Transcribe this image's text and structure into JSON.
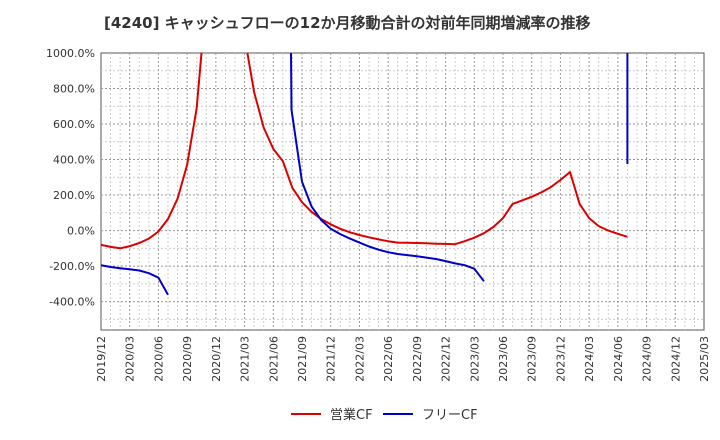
{
  "chart_data": {
    "type": "line",
    "title": "[4240]  キャッシュフローの12か月移動合計の対前年同期増減率の推移",
    "xlabel": "",
    "ylabel": "",
    "ylim": [
      -560,
      1000
    ],
    "y_ticks": [
      1000,
      800,
      600,
      400,
      200,
      0,
      -200,
      -400
    ],
    "y_tick_labels": [
      "1000.0%",
      "800.0%",
      "600.0%",
      "400.0%",
      "200.0%",
      "0.0%",
      "-200.0%",
      "-400.0%"
    ],
    "x_tick_labels": [
      "2019/12",
      "2020/03",
      "2020/06",
      "2020/09",
      "2020/12",
      "2021/03",
      "2021/06",
      "2021/09",
      "2021/12",
      "2022/03",
      "2022/06",
      "2022/09",
      "2022/12",
      "2023/03",
      "2023/06",
      "2023/09",
      "2023/12",
      "2024/03",
      "2024/06",
      "2024/09",
      "2024/12",
      "2025/03"
    ],
    "grid": true,
    "legend_position": "bottom-center",
    "series": [
      {
        "name": "営業CF",
        "color": "#dd0000",
        "points": [
          [
            0,
            -80
          ],
          [
            1,
            -92
          ],
          [
            2,
            -100
          ],
          [
            3,
            -88
          ],
          [
            4,
            -70
          ],
          [
            5,
            -45
          ],
          [
            6,
            -5
          ],
          [
            7,
            65
          ],
          [
            8,
            180
          ],
          [
            9,
            370
          ],
          [
            10,
            690
          ],
          [
            10.5,
            1000
          ],
          null,
          [
            15.3,
            1000
          ],
          [
            16,
            780
          ],
          [
            17,
            580
          ],
          [
            18,
            460
          ],
          [
            19,
            390
          ],
          [
            20,
            240
          ],
          [
            21,
            160
          ],
          [
            22,
            105
          ],
          [
            23,
            65
          ],
          [
            24,
            35
          ],
          [
            25,
            10
          ],
          [
            26,
            -10
          ],
          [
            27,
            -25
          ],
          [
            28,
            -38
          ],
          [
            29,
            -50
          ],
          [
            30,
            -60
          ],
          [
            31,
            -68
          ],
          [
            32,
            -69
          ],
          [
            33,
            -70
          ],
          [
            34,
            -72
          ],
          [
            35,
            -74
          ],
          [
            36,
            -75
          ],
          [
            37,
            -77
          ],
          [
            38,
            -60
          ],
          [
            39,
            -40
          ],
          [
            40,
            -15
          ],
          [
            41,
            20
          ],
          [
            42,
            70
          ],
          [
            43,
            150
          ],
          [
            44,
            170
          ],
          [
            45,
            190
          ],
          [
            46,
            215
          ],
          [
            47,
            245
          ],
          [
            48,
            285
          ],
          [
            49,
            330
          ],
          [
            50,
            150
          ],
          [
            51,
            70
          ],
          [
            52,
            25
          ],
          [
            53,
            0
          ],
          [
            54,
            -18
          ],
          [
            55,
            -35
          ]
        ]
      },
      {
        "name": "フリーCF",
        "color": "#0000cc",
        "points": [
          [
            0,
            -195
          ],
          [
            1,
            -205
          ],
          [
            2,
            -212
          ],
          [
            3,
            -218
          ],
          [
            4,
            -225
          ],
          [
            5,
            -240
          ],
          [
            6,
            -265
          ],
          [
            7,
            -362
          ],
          null,
          [
            19.85,
            1000
          ],
          [
            19.9,
            680
          ],
          [
            21,
            275
          ],
          [
            22,
            135
          ],
          [
            23,
            60
          ],
          [
            24,
            10
          ],
          [
            25,
            -20
          ],
          [
            26,
            -45
          ],
          [
            27,
            -68
          ],
          [
            28,
            -90
          ],
          [
            29,
            -108
          ],
          [
            30,
            -122
          ],
          [
            31,
            -132
          ],
          [
            32,
            -138
          ],
          [
            33,
            -145
          ],
          [
            34,
            -152
          ],
          [
            35,
            -160
          ],
          [
            36,
            -172
          ],
          [
            37,
            -185
          ],
          [
            38,
            -195
          ],
          [
            39,
            -215
          ],
          [
            40,
            -285
          ],
          null,
          [
            55,
            1000
          ],
          [
            55,
            375
          ]
        ]
      }
    ]
  }
}
